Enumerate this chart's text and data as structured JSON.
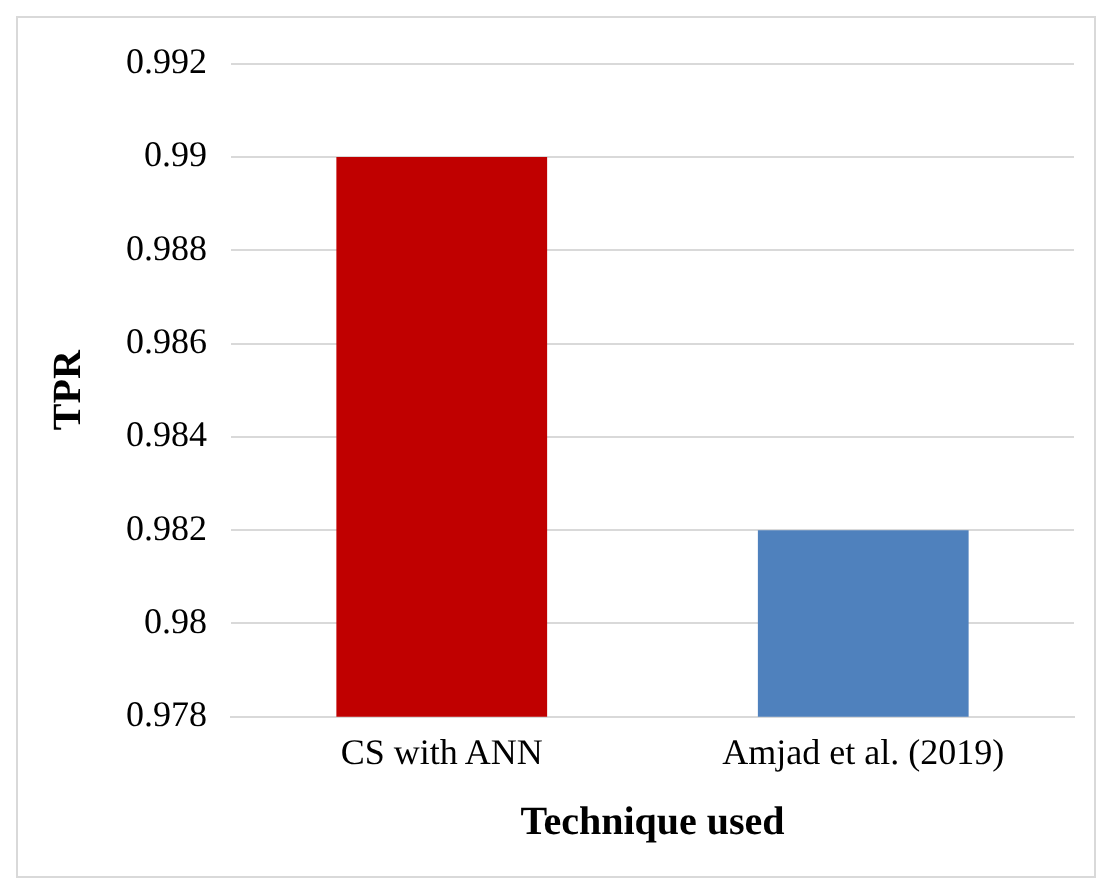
{
  "chart_data": {
    "type": "bar",
    "xlabel": "Technique used",
    "ylabel": "TPR",
    "categories": [
      "CS with ANN",
      "Amjad et al. (2019)"
    ],
    "values": [
      0.99,
      0.982
    ],
    "colors": [
      "#c00000",
      "#4f81bd"
    ],
    "ylim": [
      0.978,
      0.992
    ],
    "yticks": [
      0.978,
      0.98,
      0.982,
      0.984,
      0.986,
      0.988,
      0.99,
      0.992
    ],
    "grid": "y",
    "legend": false
  }
}
